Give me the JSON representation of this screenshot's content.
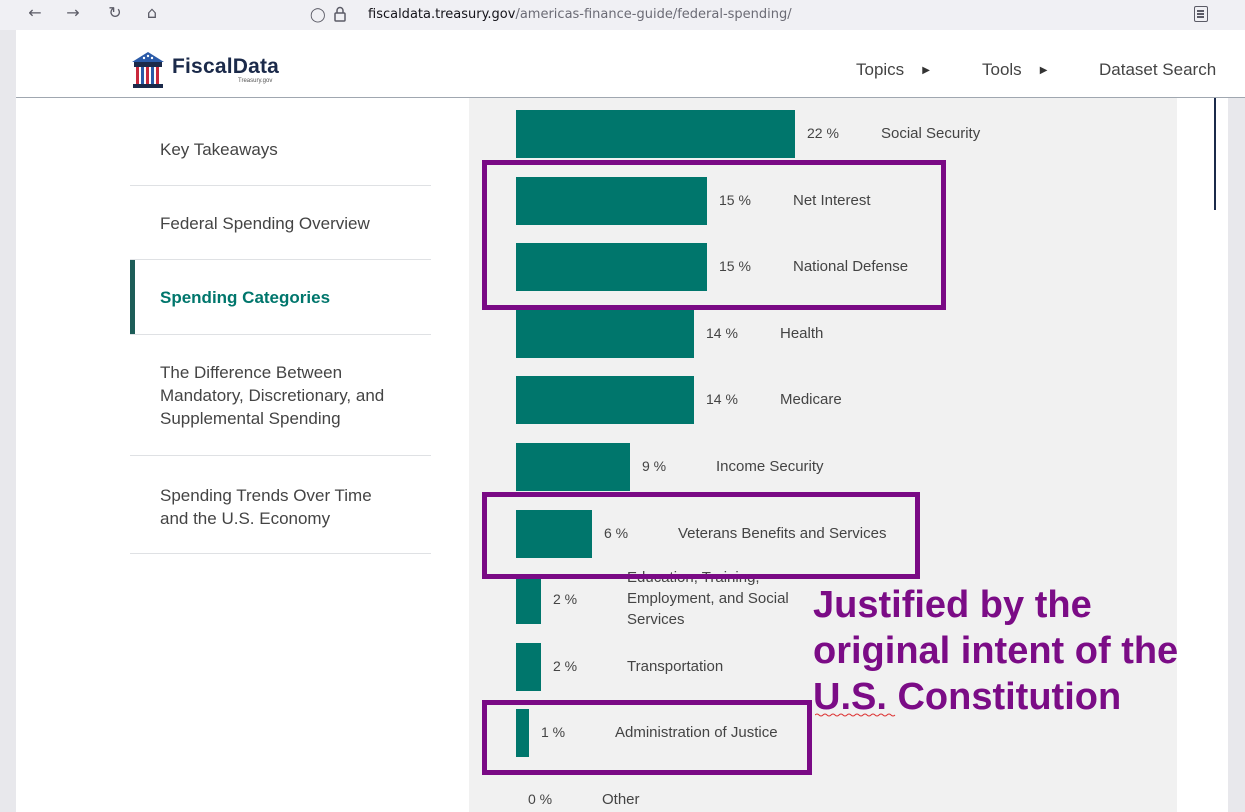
{
  "browser": {
    "url_domain": "fiscaldata.treasury.gov",
    "url_path": "/americas-finance-guide/federal-spending/",
    "back_icon": "arrow-left-icon",
    "forward_icon": "arrow-right-icon",
    "reload_icon": "reload-icon",
    "home_icon": "home-icon"
  },
  "header": {
    "logo_text": "FiscalData",
    "logo_subtext": "Treasury.gov",
    "nav": [
      {
        "label": "Topics"
      },
      {
        "label": "Tools"
      },
      {
        "label": "Dataset Search"
      }
    ]
  },
  "sidebar": {
    "items": [
      {
        "label": "Key Takeaways",
        "active": false
      },
      {
        "label": "Federal Spending Overview",
        "active": false
      },
      {
        "label": "Spending Categories",
        "active": true
      },
      {
        "label": "The Difference Between Mandatory, Discretionary, and Supplemental Spending",
        "active": false
      },
      {
        "label": "Spending Trends Over Time and the U.S. Economy",
        "active": false
      }
    ]
  },
  "chart_data": {
    "type": "bar",
    "orientation": "horizontal",
    "categories": [
      "Social Security",
      "Net Interest",
      "National Defense",
      "Health",
      "Medicare",
      "Income Security",
      "Veterans Benefits and Services",
      "Education, Training, Employment, and Social Services",
      "Transportation",
      "Administration of Justice",
      "Other"
    ],
    "values": [
      22,
      15,
      15,
      14,
      14,
      9,
      6,
      2,
      2,
      1,
      0
    ],
    "value_labels": [
      "22 %",
      "15 %",
      "15 %",
      "14 %",
      "14 %",
      "9 %",
      "6 %",
      "2 %",
      "2 %",
      "1 %",
      "0 %"
    ],
    "bar_color": "#00766c",
    "highlighted": [
      "Net Interest",
      "National Defense",
      "Veterans Benefits and Services",
      "Administration of Justice"
    ]
  },
  "annotation": {
    "line1": "Justified by the",
    "line2": "original intent of the",
    "line3": "U.S. Constitution",
    "color": "#7b0c86"
  }
}
